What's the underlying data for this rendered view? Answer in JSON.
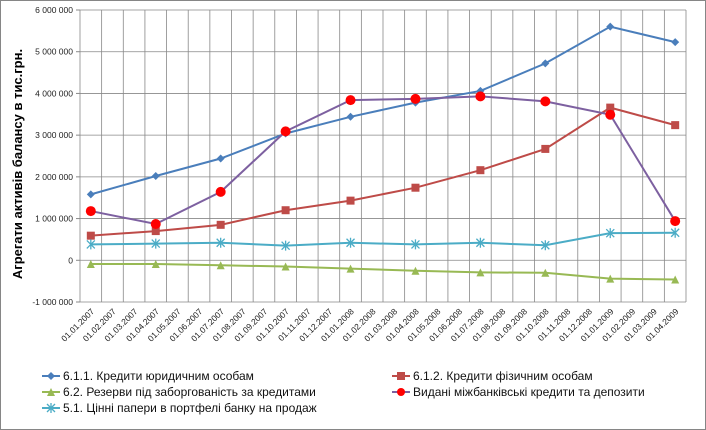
{
  "chart_data": {
    "type": "line",
    "title": "",
    "xlabel": "",
    "ylabel": "Агрегати активів балансу в тис.грн.",
    "ylim": [
      -1000000,
      6000000
    ],
    "yticks": [
      6000000,
      5000000,
      4000000,
      3000000,
      2000000,
      1000000,
      0,
      -1000000
    ],
    "ytick_labels": [
      "6 000 000",
      "5 000 000",
      "4 000 000",
      "3 000 000",
      "2 000 000",
      "1 000 000",
      "0",
      "-1 000 000"
    ],
    "grid": true,
    "legend_position": "bottom",
    "categories": [
      "01.01.2007",
      "01.02.2007",
      "01.03.2007",
      "01.04.2007",
      "01.05.2007",
      "01.06.2007",
      "01.07.2007",
      "01.08.2007",
      "01.09.2007",
      "01.10.2007",
      "01.11.2007",
      "01.12.2007",
      "01.01.2008",
      "01.02.2008",
      "01.03.2008",
      "01.04.2008",
      "01.05.2008",
      "01.06.2008",
      "01.07.2008",
      "01.08.2008",
      "01.09.2008",
      "01.10.2008",
      "01.11.2008",
      "01.12.2008",
      "01.01.2009",
      "01.02.2009",
      "01.03.2009",
      "01.04.2009"
    ],
    "x": [
      "01.01.2007",
      "01.04.2007",
      "01.07.2007",
      "01.10.2007",
      "01.01.2008",
      "01.04.2008",
      "01.07.2008",
      "01.10.2008",
      "01.01.2009",
      "01.04.2009"
    ],
    "series": [
      {
        "name": "6.1.1. Кредити юридичним особам",
        "color": "#4a7ebb",
        "marker": "diamond",
        "values": [
          1580000,
          2020000,
          2440000,
          3040000,
          3440000,
          3780000,
          4060000,
          4720000,
          5600000,
          5230000
        ]
      },
      {
        "name": "6.1.2. Кредити фізичним особам",
        "color": "#be4b48",
        "marker": "square",
        "values": [
          590000,
          700000,
          850000,
          1200000,
          1430000,
          1740000,
          2160000,
          2670000,
          3660000,
          3240000
        ]
      },
      {
        "name": "6.2. Резерви під заборгованість за кредитами",
        "color": "#98b954",
        "marker": "triangle",
        "values": [
          -90000,
          -90000,
          -120000,
          -150000,
          -200000,
          -250000,
          -290000,
          -300000,
          -440000,
          -460000
        ]
      },
      {
        "name": "Видані міжбанківські кредити та депозити",
        "color": "#7d60a0",
        "marker": "circle",
        "marker_color": "#ff0000",
        "values": [
          1180000,
          870000,
          1640000,
          3090000,
          3840000,
          3870000,
          3930000,
          3810000,
          3490000,
          940000
        ]
      },
      {
        "name": "5.1. Цінні папери в портфелі банку на продаж",
        "color": "#4bacc6",
        "marker": "star",
        "values": [
          380000,
          400000,
          420000,
          350000,
          420000,
          380000,
          420000,
          360000,
          650000,
          660000
        ]
      }
    ]
  }
}
